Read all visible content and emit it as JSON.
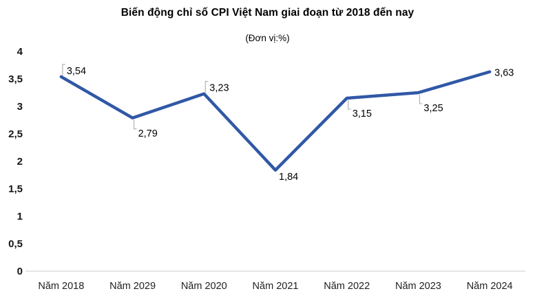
{
  "chart": {
    "title": "Biến động chỉ số CPI Việt Nam giai đoạn từ 2018 đến nay",
    "subtitle": "(Đơn vị:%)"
  },
  "chart_data": {
    "type": "line",
    "title": "Biến động chỉ số CPI Việt Nam giai đoạn từ 2018 đến nay",
    "subtitle": "(Đơn vị:%)",
    "xlabel": "",
    "ylabel": "",
    "categories": [
      "Năm 2018",
      "Năm 2029",
      "Năm 2020",
      "Năm 2021",
      "Năm 2022",
      "Năm 2023",
      "Năm 2024"
    ],
    "values": [
      3.54,
      2.79,
      3.23,
      1.84,
      3.15,
      3.25,
      3.63
    ],
    "value_labels": [
      "3,54",
      "2,79",
      "3,23",
      "1,84",
      "3,15",
      "3,25",
      "3,63"
    ],
    "label_positions": [
      "above",
      "below",
      "above",
      "right-below",
      "below",
      "below",
      "right"
    ],
    "ylim": [
      0,
      4
    ],
    "ytick_step": 0.5,
    "ytick_labels": [
      "0",
      "0,5",
      "1",
      "1,5",
      "2",
      "2,5",
      "3",
      "3,5",
      "4"
    ],
    "grid": false,
    "legend": "none",
    "line_color": "#3158a6",
    "leader_color": "#ababab",
    "axis_line_color": "#d6d6d6",
    "tick_label_color": "#1f1f1f"
  }
}
